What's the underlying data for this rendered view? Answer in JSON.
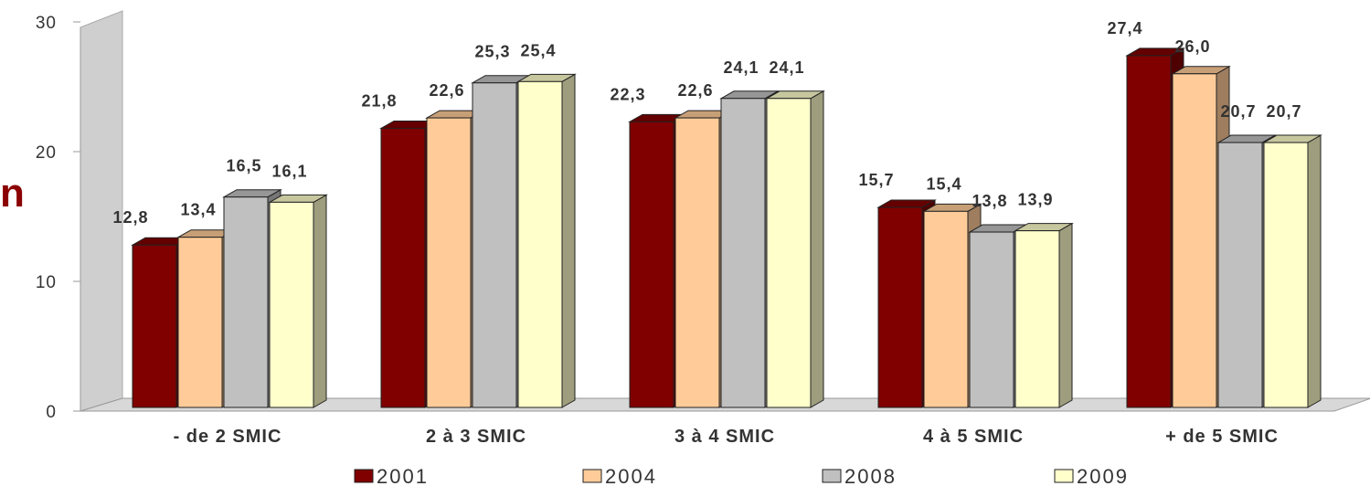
{
  "edge_text": "n",
  "colors": {
    "2001": "#800000",
    "2004": "#ffcc99",
    "2008": "#c0c0c0",
    "2009": "#ffffcc"
  },
  "chart_data": {
    "type": "bar",
    "categories": [
      "- de 2 SMIC",
      "2 à 3 SMIC",
      "3 à 4 SMIC",
      "4 à 5 SMIC",
      "+ de 5 SMIC"
    ],
    "series": [
      {
        "name": "2001",
        "values": [
          12.8,
          21.8,
          22.3,
          15.7,
          27.4
        ],
        "labels": [
          "12,8",
          "21,8",
          "22,3",
          "15,7",
          "27,4"
        ]
      },
      {
        "name": "2004",
        "values": [
          13.4,
          22.6,
          22.6,
          15.4,
          26.0
        ],
        "labels": [
          "13,4",
          "22,6",
          "22,6",
          "15,4",
          "26,0"
        ]
      },
      {
        "name": "2008",
        "values": [
          16.5,
          25.3,
          24.1,
          13.8,
          20.7
        ],
        "labels": [
          "16,5",
          "25,3",
          "24,1",
          "13,8",
          "20,7"
        ]
      },
      {
        "name": "2009",
        "values": [
          16.1,
          25.4,
          24.1,
          13.9,
          20.7
        ],
        "labels": [
          "16,1",
          "25,4",
          "24,1",
          "13,9",
          "20,7"
        ]
      }
    ],
    "yticks": [
      "0",
      "10",
      "20",
      "30"
    ],
    "ylim": [
      0,
      30
    ],
    "grid": false,
    "legend": "bottom",
    "title": "",
    "xlabel": "",
    "ylabel": ""
  }
}
